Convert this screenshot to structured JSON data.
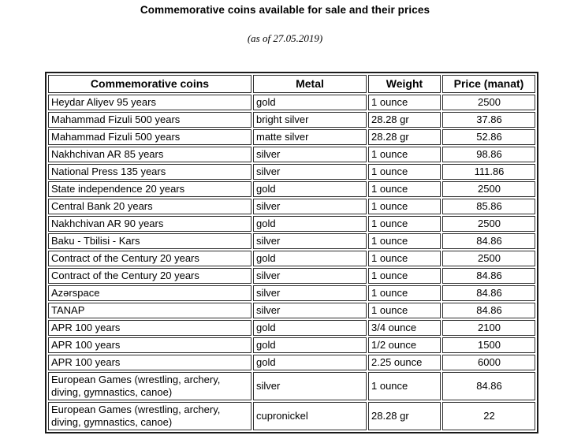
{
  "page": {
    "title": "Commemorative coins available for sale and their prices",
    "subtitle": "(as of 27.05.2019)"
  },
  "colors": {
    "background": "#ffffff",
    "text": "#000000",
    "table_outer_border": "#1a1a1a",
    "table_cell_border": "#2e2e2e"
  },
  "table": {
    "columns": [
      {
        "label": "Commemorative coins",
        "align": "left"
      },
      {
        "label": "Metal",
        "align": "left"
      },
      {
        "label": "Weight",
        "align": "left"
      },
      {
        "label": "Price (manat)",
        "align": "center"
      }
    ],
    "rows": [
      [
        "Heydar Aliyev 95 years",
        "gold",
        "1 ounce",
        "2500"
      ],
      [
        "Mahammad Fizuli 500 years",
        "bright silver",
        "28.28 gr",
        "37.86"
      ],
      [
        "Mahammad Fizuli 500 years",
        "matte silver",
        "28.28 gr",
        "52.86"
      ],
      [
        "Nakhchivan AR 85 years",
        "silver",
        "1 ounce",
        "98.86"
      ],
      [
        "National Press 135 years",
        "silver",
        "1 ounce",
        "111.86"
      ],
      [
        "State independence 20 years",
        "gold",
        "1 ounce",
        "2500"
      ],
      [
        "Central Bank 20 years",
        "silver",
        "1 ounce",
        "85.86"
      ],
      [
        "Nakhchivan AR 90 years",
        "gold",
        "1 ounce",
        "2500"
      ],
      [
        "Baku - Tbilisi - Kars",
        "silver",
        "1 ounce",
        "84.86"
      ],
      [
        "Contract of the Century 20 years",
        "gold",
        "1 ounce",
        "2500"
      ],
      [
        "Contract of the Century 20 years",
        "silver",
        "1 ounce",
        "84.86"
      ],
      [
        "Azərspace",
        "silver",
        "1 ounce",
        "84.86"
      ],
      [
        "TANAP",
        "silver",
        "1 ounce",
        "84.86"
      ],
      [
        "APR 100 years",
        "gold",
        "3/4 ounce",
        "2100"
      ],
      [
        "APR 100 years",
        "gold",
        "1/2 ounce",
        "1500"
      ],
      [
        "APR 100 years",
        "gold",
        "2.25 ounce",
        "6000"
      ],
      [
        "European Games (wrestling, archery, diving, gymnastics, canoe)",
        "silver",
        "1 ounce",
        "84.86"
      ],
      [
        "European Games (wrestling, archery, diving, gymnastics, canoe)",
        "cupronickel",
        "28.28 gr",
        "22"
      ]
    ]
  }
}
